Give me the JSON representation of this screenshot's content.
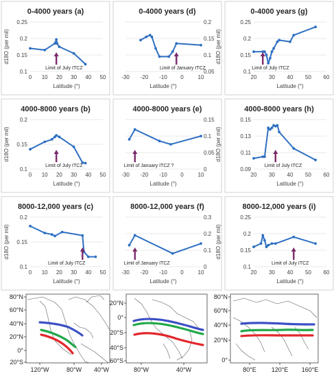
{
  "colors": {
    "series": "#2e6fc2",
    "arrow": "#7a2a6a",
    "band_blue": "#3b4fc4",
    "band_green": "#22a84a",
    "band_red": "#e3262c"
  },
  "chart_data": [
    {
      "id": "a",
      "type": "line",
      "title": "0-4000 years (a)",
      "xlabel": "Latitude (°)",
      "ylabel": "d18O (per mil)",
      "yaxis_side": "left",
      "xlim": [
        0,
        50
      ],
      "ylim": [
        0.1,
        0.25
      ],
      "xticks": [
        0,
        10,
        20,
        30,
        40,
        50
      ],
      "yticks": [
        0.1,
        0.15,
        0.2,
        0.25
      ],
      "x": [
        0,
        10,
        17,
        18,
        18.5,
        20,
        30,
        38
      ],
      "y": [
        0.17,
        0.165,
        0.185,
        0.197,
        0.185,
        0.175,
        0.155,
        0.122
      ],
      "annotation": {
        "text": "Limit of July ITCZ",
        "x": 18
      },
      "grid": true
    },
    {
      "id": "d",
      "type": "line",
      "title": "0-4000 years (d)",
      "xlabel": "Latitude (°)",
      "ylabel": "d18O (per mil)",
      "yaxis_side": "right",
      "xlim": [
        -30,
        10
      ],
      "ylim": [
        0.05,
        0.2
      ],
      "xticks": [
        -30,
        -20,
        -10,
        0,
        10
      ],
      "yticks": [
        0.05,
        0.1,
        0.15,
        0.2
      ],
      "x": [
        -22,
        -19,
        -17,
        -16,
        -14,
        -12,
        -7,
        -5,
        -3,
        10
      ],
      "y": [
        0.145,
        0.155,
        0.16,
        0.155,
        0.12,
        0.095,
        0.095,
        0.11,
        0.135,
        0.13
      ],
      "annotation": {
        "text": "Limit of January ITCZ",
        "x": -3
      },
      "grid": true
    },
    {
      "id": "g",
      "type": "line",
      "title": "0-4000 years (g)",
      "xlabel": "Latitude (°)",
      "ylabel": "",
      "yaxis_side": "left",
      "xlim": [
        20,
        60
      ],
      "ylim": [
        0.1,
        0.25
      ],
      "xticks": [
        20,
        30,
        40,
        50,
        60
      ],
      "yticks": [
        0.1,
        0.15,
        0.2,
        0.25
      ],
      "x": [
        20,
        25,
        26,
        27,
        28,
        29,
        30,
        31,
        33,
        34,
        40,
        42,
        54
      ],
      "y": [
        0.16,
        0.16,
        0.16,
        0.15,
        0.125,
        0.14,
        0.16,
        0.17,
        0.19,
        0.195,
        0.19,
        0.21,
        0.235
      ],
      "annotation": {
        "text": "Limit of July ITCZ",
        "x": 25
      },
      "grid": true
    },
    {
      "id": "b",
      "type": "line",
      "title": "4000-8000 years (b)",
      "xlabel": "Latitude (°)",
      "ylabel": "d18O (per mil)",
      "yaxis_side": "left",
      "xlim": [
        0,
        50
      ],
      "ylim": [
        0.1,
        0.2
      ],
      "xticks": [
        0,
        10,
        20,
        30,
        40,
        50
      ],
      "yticks": [
        0.1,
        0.15,
        0.2
      ],
      "x": [
        0,
        10,
        15,
        17,
        18,
        20,
        30,
        36,
        38
      ],
      "y": [
        0.14,
        0.155,
        0.16,
        0.165,
        0.168,
        0.165,
        0.145,
        0.113,
        0.112
      ],
      "annotation": {
        "text": "Limit of July ITCZ",
        "x": 18
      },
      "grid": true
    },
    {
      "id": "e",
      "type": "line",
      "title": "4000-8000 years (e)",
      "xlabel": "Latitude (°)",
      "ylabel": "d18O (per mil)",
      "yaxis_side": "right",
      "xlim": [
        -30,
        10
      ],
      "ylim": [
        0,
        0.15
      ],
      "xticks": [
        -30,
        -20,
        -10,
        0,
        10
      ],
      "yticks": [
        0,
        0.05,
        0.1,
        0.15
      ],
      "x": [
        -28,
        -25,
        -12,
        -6,
        10
      ],
      "y": [
        0.09,
        0.12,
        0.085,
        0.075,
        0.1
      ],
      "annotation": {
        "text": "Limit of January ITCZ ?",
        "x": -25
      },
      "grid": true
    },
    {
      "id": "h",
      "type": "line",
      "title": "4000-8000 years (h)",
      "xlabel": "Latitude (°)",
      "ylabel": "",
      "yaxis_side": "left",
      "xlim": [
        20,
        60
      ],
      "ylim": [
        0.09,
        0.15
      ],
      "xticks": [
        20,
        30,
        40,
        50,
        60
      ],
      "yticks": [
        0.09,
        0.11,
        0.13,
        0.15
      ],
      "x": [
        20,
        25,
        26,
        28,
        29,
        30,
        31,
        32,
        33,
        34,
        42,
        54
      ],
      "y": [
        0.103,
        0.105,
        0.105,
        0.14,
        0.138,
        0.14,
        0.143,
        0.142,
        0.143,
        0.135,
        0.115,
        0.101
      ],
      "annotation": {
        "text": "Limit of July ITCZ",
        "x": 32
      },
      "grid": true
    },
    {
      "id": "c",
      "type": "line",
      "title": "8000-12,000 years (c)",
      "xlabel": "Latitude (°)",
      "ylabel": "d18O (per mil)",
      "yaxis_side": "left",
      "xlim": [
        0,
        50
      ],
      "ylim": [
        0.1,
        0.2
      ],
      "xticks": [
        0,
        10,
        20,
        30,
        40,
        50
      ],
      "yticks": [
        0.1,
        0.15,
        0.2
      ],
      "x": [
        0,
        10,
        15,
        17,
        22,
        36,
        37,
        40,
        45
      ],
      "y": [
        0.182,
        0.168,
        0.165,
        0.162,
        0.17,
        0.163,
        0.13,
        0.12,
        0.12
      ],
      "annotation": {
        "text": "Limit of July ITCZ",
        "x": 36
      },
      "grid": true
    },
    {
      "id": "f",
      "type": "line",
      "title": "8000-12,000 years (f)",
      "xlabel": "Latitude (°)",
      "ylabel": "d18O (per mil)",
      "yaxis_side": "right",
      "xlim": [
        -30,
        10
      ],
      "ylim": [
        0,
        0.3
      ],
      "xticks": [
        -30,
        -20,
        -10,
        0,
        10
      ],
      "yticks": [
        0,
        0.1,
        0.2,
        0.3
      ],
      "x": [
        -28,
        -25,
        -5,
        10
      ],
      "y": [
        0.13,
        0.19,
        0.08,
        0.14
      ],
      "annotation": {
        "text": "Limit of January ITCZ",
        "x": -25
      },
      "grid": true
    },
    {
      "id": "i",
      "type": "line",
      "title": "8000-12,000 years (i)",
      "xlabel": "Latitude (°)",
      "ylabel": "",
      "yaxis_side": "left",
      "xlim": [
        20,
        60
      ],
      "ylim": [
        0.1,
        0.25
      ],
      "xticks": [
        20,
        30,
        40,
        50,
        60
      ],
      "yticks": [
        0.1,
        0.15,
        0.2,
        0.25
      ],
      "x": [
        20,
        24,
        25,
        26,
        27,
        28,
        30,
        32,
        42,
        54
      ],
      "y": [
        0.16,
        0.17,
        0.195,
        0.18,
        0.16,
        0.165,
        0.17,
        0.17,
        0.19,
        0.17
      ],
      "annotation": {
        "text": "Limit of July ITCZ",
        "x": 42
      },
      "grid": true
    }
  ],
  "maps": [
    {
      "id": "map-americas-north",
      "y_labels": [
        "80°N",
        "60°N",
        "40°N",
        "20°N",
        "0°",
        "20°S"
      ],
      "x_labels": [
        "120°W",
        "80°W",
        "40°W"
      ]
    },
    {
      "id": "map-south-america",
      "y_labels": [
        "20°N",
        "0°",
        "20°S",
        "40°S",
        "60°S"
      ],
      "x_labels": [
        "80°W",
        "40°W"
      ]
    },
    {
      "id": "map-asia",
      "y_labels": [
        "80°N",
        "60°N",
        "40°N",
        "20°N",
        "0°"
      ],
      "x_labels": [
        "80°E",
        "120°E",
        "160°E"
      ]
    }
  ]
}
